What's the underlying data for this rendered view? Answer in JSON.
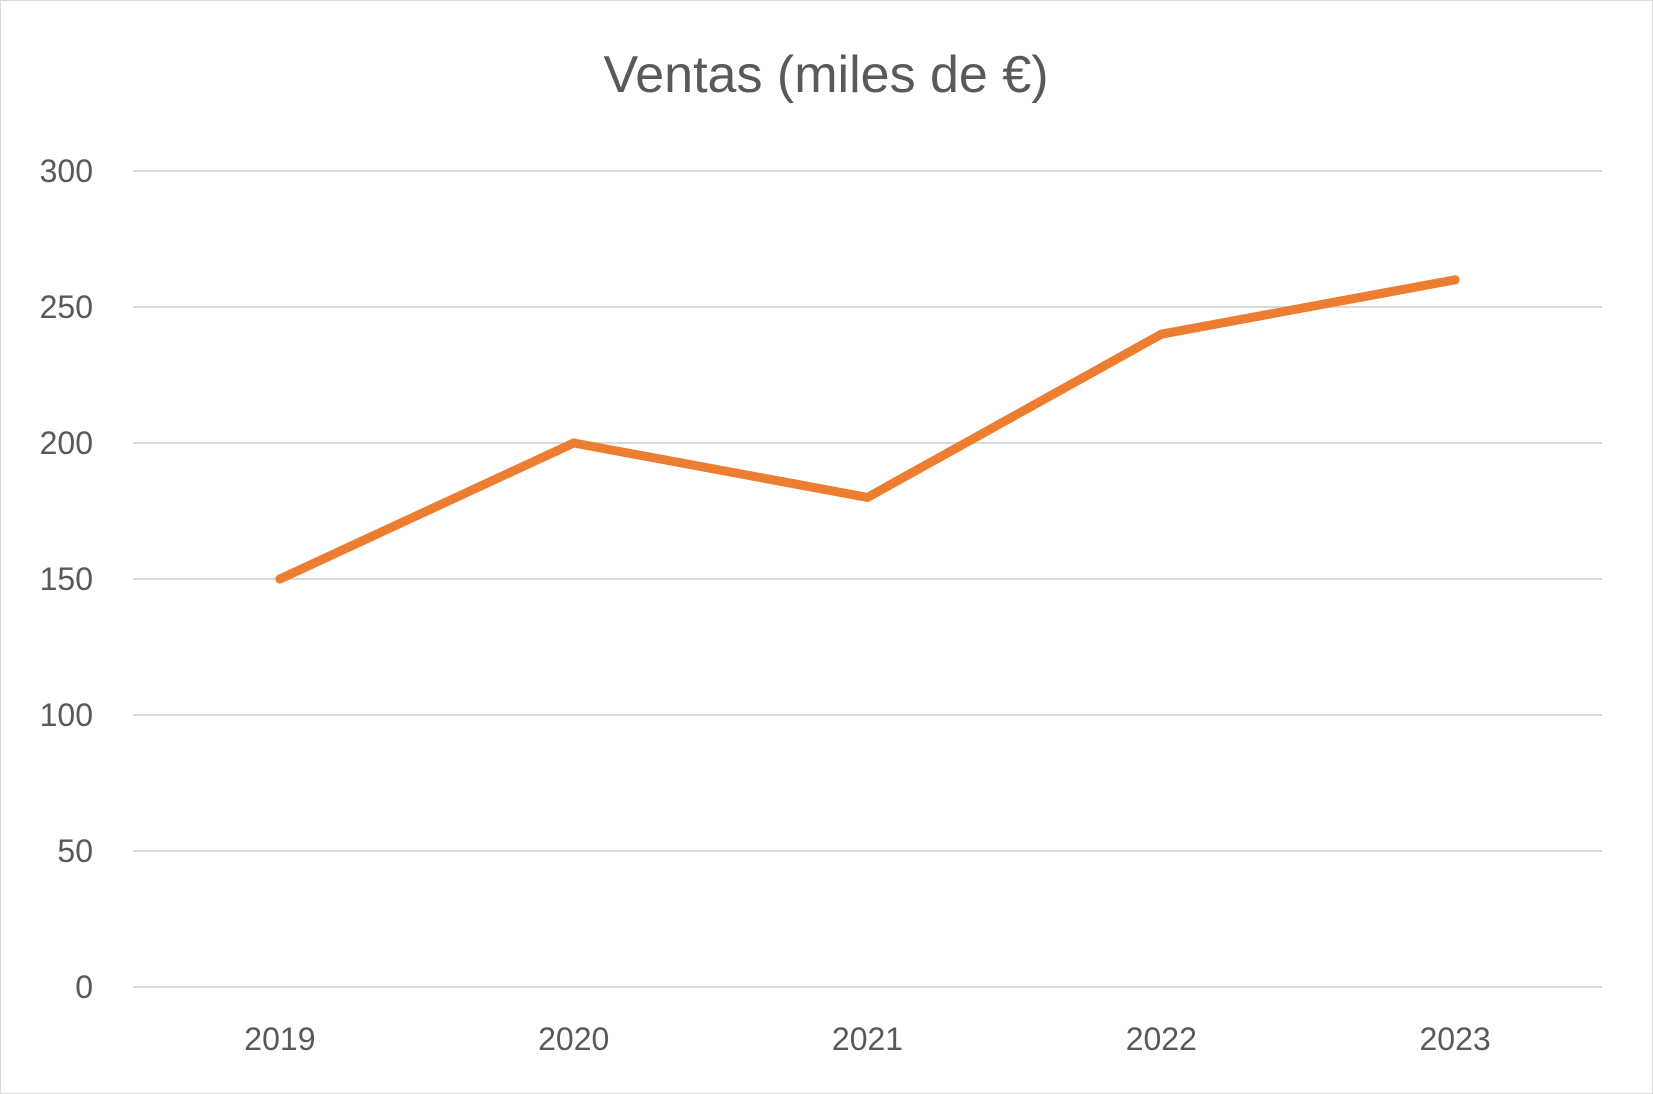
{
  "chart_data": {
    "type": "line",
    "title": "Ventas (miles de €)",
    "categories": [
      "2019",
      "2020",
      "2021",
      "2022",
      "2023"
    ],
    "series": [
      {
        "values": [
          150,
          200,
          180,
          240,
          260
        ],
        "color": "#ED7D31"
      }
    ],
    "y_ticks": [
      "0",
      "50",
      "100",
      "150",
      "200",
      "250",
      "300"
    ],
    "ylim": [
      0,
      300
    ],
    "xlabel": "",
    "ylabel": "",
    "grid": true,
    "legend": "none"
  }
}
